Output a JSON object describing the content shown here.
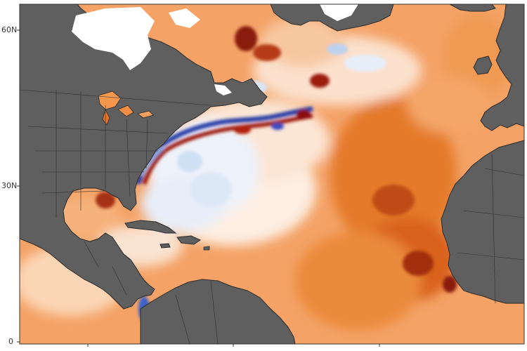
{
  "map": {
    "axis_labels": {
      "lat_60": "60N",
      "lat_30": "30N",
      "lat_0": "0"
    },
    "colors": {
      "land": "#5f5f5f",
      "coast": "#2b2b2b",
      "ice": "#ffffff",
      "ocean_neutral": "#fbe7d6",
      "warm_light": "#f9b07c",
      "warm": "#f28a38",
      "warm_strong": "#e06a20",
      "hot": "#b8380f",
      "hottest": "#7a120a",
      "cool_light": "#d6e6f7",
      "cool": "#8fb8e6",
      "cold": "#2b4fb5",
      "coldest": "#1a1f7a"
    }
  }
}
